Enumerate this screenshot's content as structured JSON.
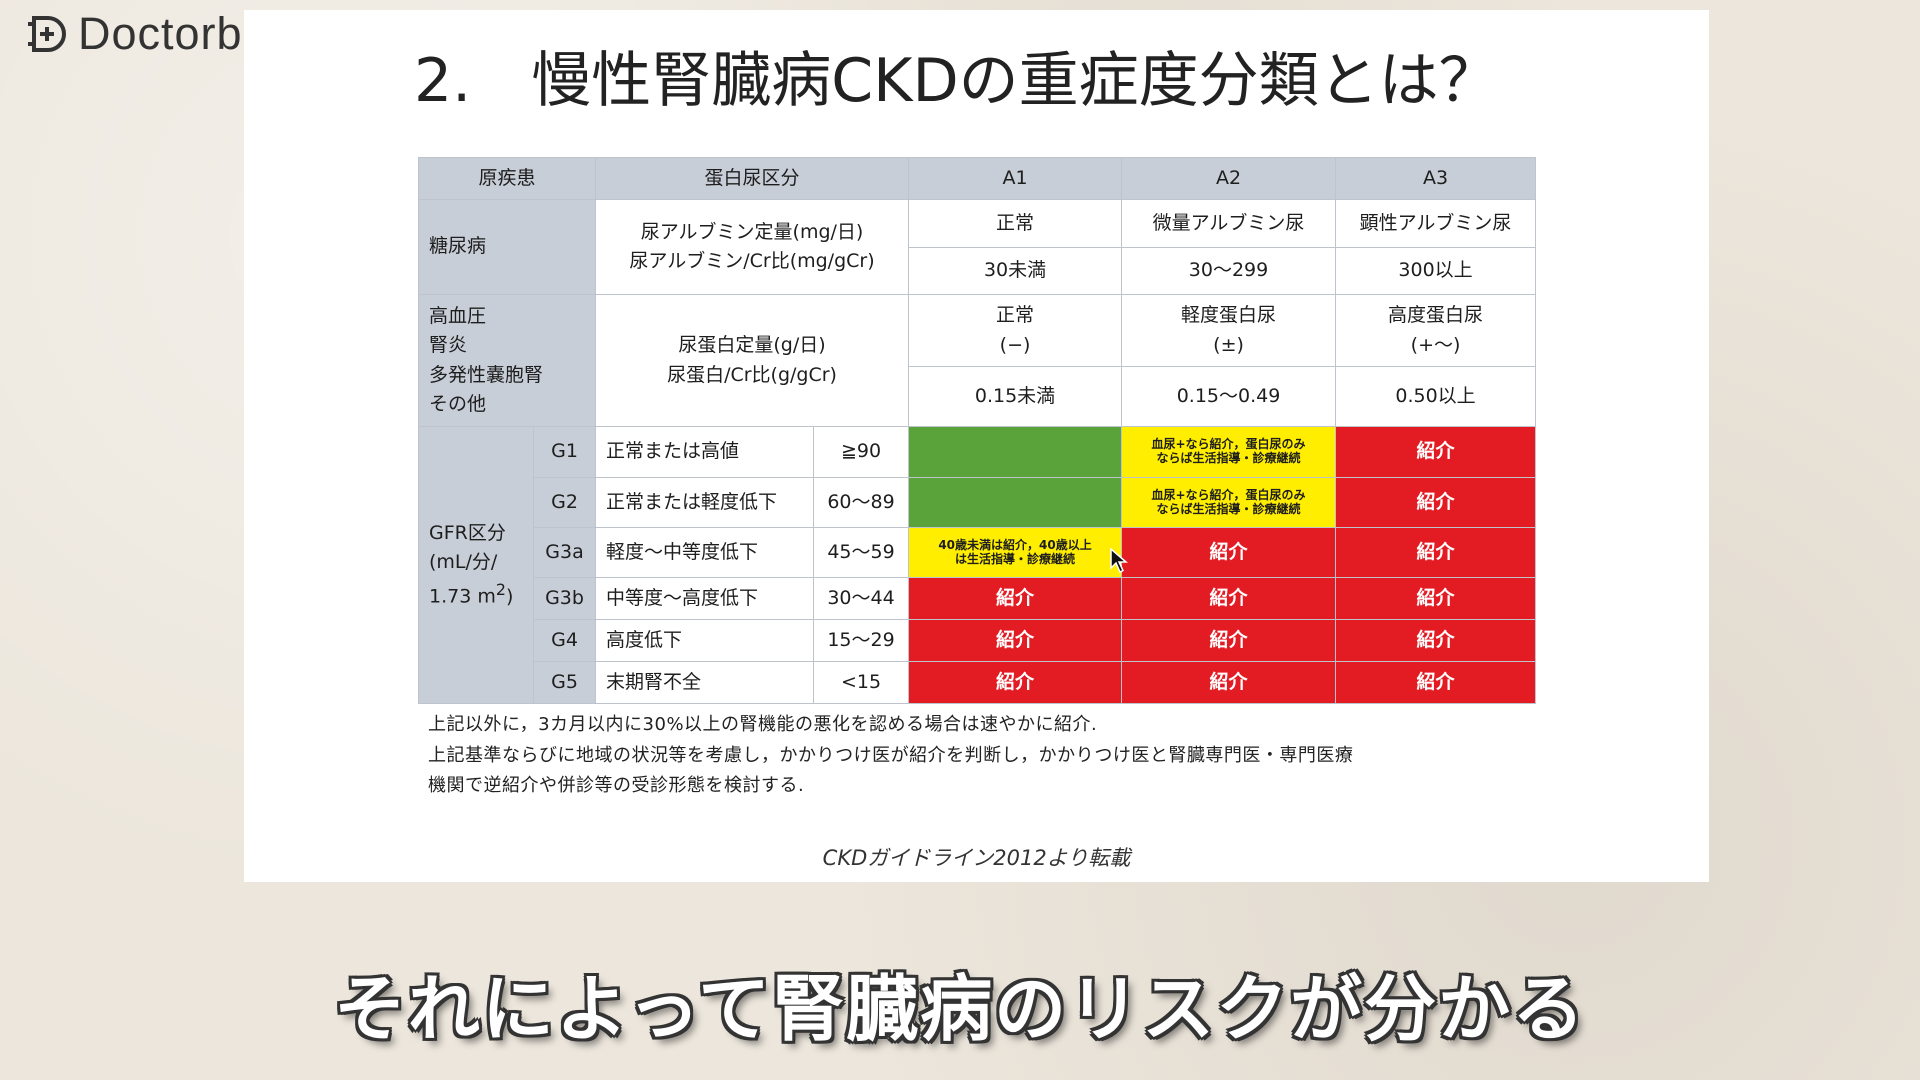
{
  "logo": {
    "text": "Doctorbook",
    "icon": "doctorbook-logo-icon"
  },
  "slide": {
    "title": "2.　慢性腎臓病CKDの重症度分類とは？",
    "table": {
      "header": {
        "disease": "原疾患",
        "protein_class": "蛋白尿区分",
        "a1": "A1",
        "a2": "A2",
        "a3": "A3"
      },
      "diabetes": {
        "disease": "糖尿病",
        "measure_line1": "尿アルブミン定量(mg/日)",
        "measure_line2": "尿アルブミン/Cr比(mg/gCr)",
        "a1_label": "正常",
        "a2_label": "微量アルブミン尿",
        "a3_label": "顕性アルブミン尿",
        "a1_value": "30未満",
        "a2_value": "30〜299",
        "a3_value": "300以上"
      },
      "other": {
        "disease_1": "高血圧",
        "disease_2": "腎炎",
        "disease_3": "多発性嚢胞腎",
        "disease_4": "その他",
        "measure_line1": "尿蛋白定量(g/日)",
        "measure_line2": "尿蛋白/Cr比(g/gCr)",
        "a1_label": "正常",
        "a1_sub": "(−)",
        "a2_label": "軽度蛋白尿",
        "a2_sub": "(±)",
        "a3_label": "高度蛋白尿",
        "a3_sub": "(+〜)",
        "a1_value": "0.15未満",
        "a2_value": "0.15〜0.49",
        "a3_value": "0.50以上"
      },
      "gfr": {
        "label_1": "GFR区分",
        "label_2": "(mL/分/",
        "label_3": "1.73 m",
        "label_sup": "2",
        "label_end": ")",
        "referral": "紹介",
        "yellow_a2_line1": "血尿+なら紹介，蛋白尿のみ",
        "yellow_a2_line2": "ならば生活指導・診療継続",
        "yellow_a1_line1": "40歳未満は紹介，40歳以上",
        "yellow_a1_line2": "は生活指導・診療継続",
        "rows": [
          {
            "grade": "G1",
            "desc": "正常または高値",
            "range": "≧90"
          },
          {
            "grade": "G2",
            "desc": "正常または軽度低下",
            "range": "60〜89"
          },
          {
            "grade": "G3a",
            "desc": "軽度〜中等度低下",
            "range": "45〜59"
          },
          {
            "grade": "G3b",
            "desc": "中等度〜高度低下",
            "range": "30〜44"
          },
          {
            "grade": "G4",
            "desc": "高度低下",
            "range": "15〜29"
          },
          {
            "grade": "G5",
            "desc": "末期腎不全",
            "range": "<15"
          }
        ]
      }
    },
    "note_line1": "上記以外に，3カ月以内に30%以上の腎機能の悪化を認める場合は速やかに紹介.",
    "note_line2": "上記基準ならびに地域の状況等を考慮し，かかりつけ医が紹介を判断し，かかりつけ医と腎臓専門医・専門医療",
    "note_line3": "機関で逆紹介や併診等の受診形態を検討する.",
    "source": "CKDガイドライン2012より転載"
  },
  "subtitle": "それによって腎臓病のリスクが分かる",
  "colors": {
    "green": "#5aa33a",
    "yellow": "#ffee00",
    "red": "#e31b23",
    "header_gray": "#c8ced7"
  },
  "cursor_icon": "mouse-pointer-icon"
}
